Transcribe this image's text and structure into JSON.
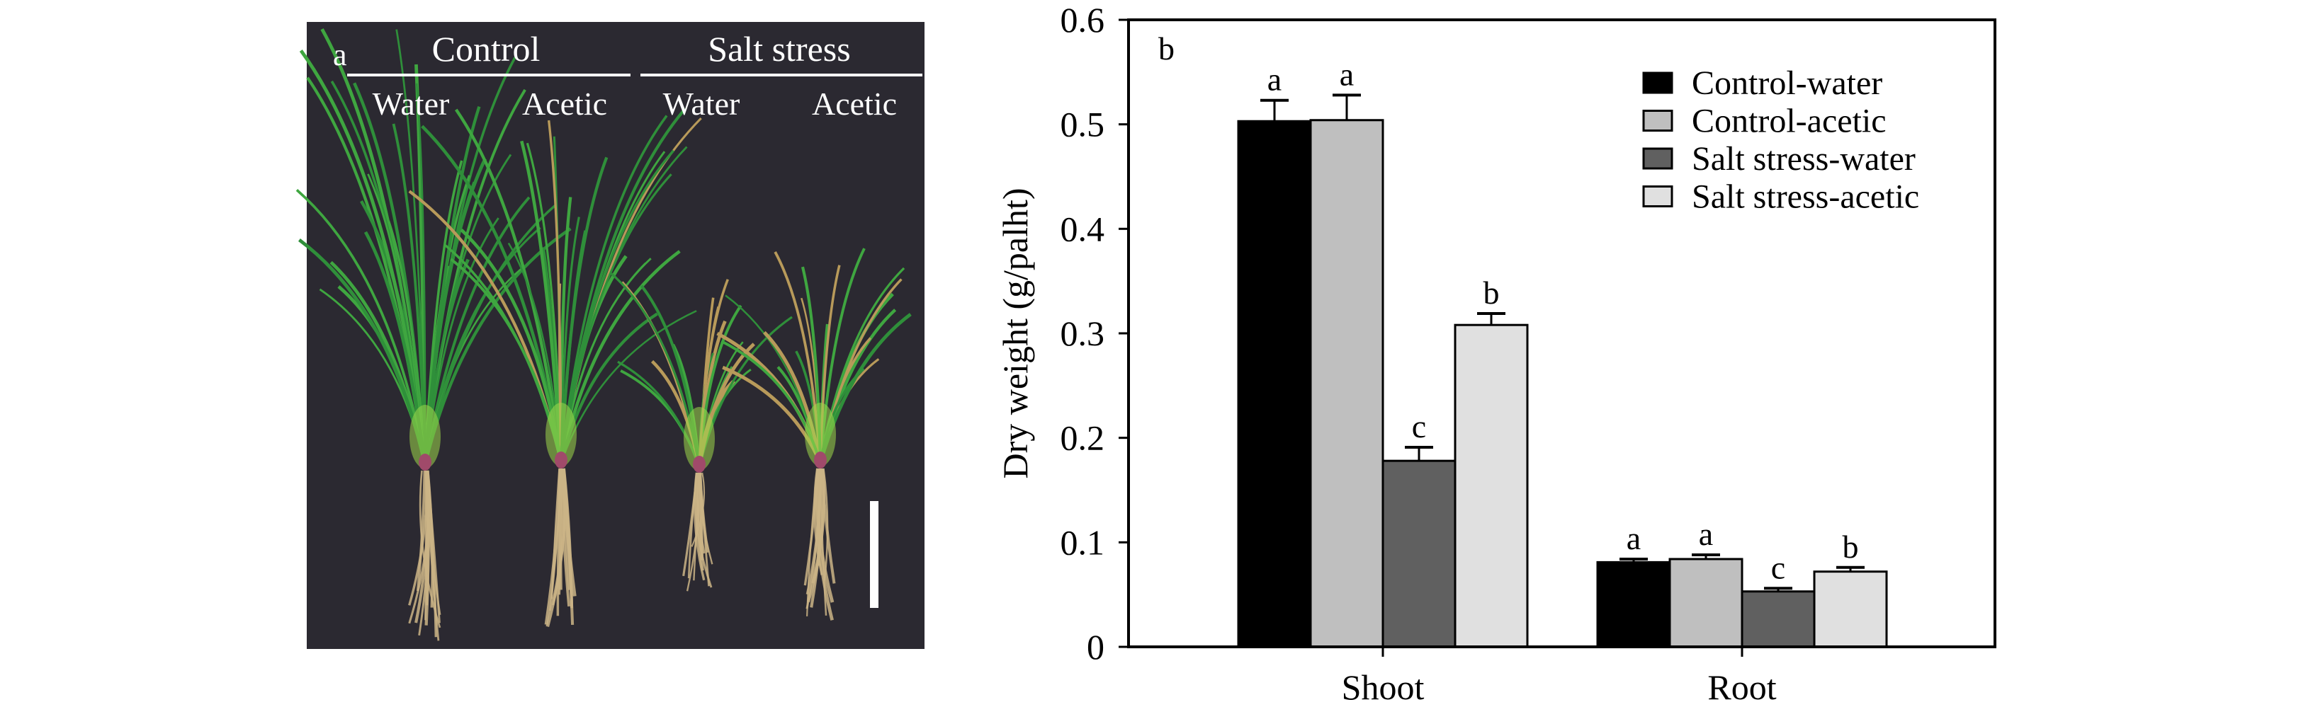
{
  "photo_panel": {
    "panel_label": "a",
    "group_labels": [
      "Control",
      "Salt stress"
    ],
    "treatment_labels": [
      "Water",
      "Acetic",
      "Water",
      "Acetic"
    ],
    "background_color": "#2b2931"
  },
  "chart_data": {
    "type": "bar",
    "panel_label": "b",
    "categories": [
      "Shoot",
      "Root"
    ],
    "ylabel": "Dry weight (g/palht)",
    "xlabel": "",
    "ylim": [
      0,
      0.6
    ],
    "yticks": [
      "0",
      "0.1",
      "0.2",
      "0.3",
      "0.4",
      "0.5",
      "0.6"
    ],
    "grid": false,
    "legend_position": "top-right",
    "error_bars": true,
    "series": [
      {
        "name": "Control-water",
        "color": "#000000",
        "values": [
          0.503,
          0.081
        ],
        "errors": [
          0.02,
          0.003
        ],
        "letters": [
          "a",
          "a"
        ]
      },
      {
        "name": "Control-acetic",
        "color": "#bfbfbf",
        "values": [
          0.504,
          0.084
        ],
        "errors": [
          0.024,
          0.004
        ],
        "letters": [
          "a",
          "a"
        ]
      },
      {
        "name": "Salt stress-water",
        "color": "#606060",
        "values": [
          0.178,
          0.053
        ],
        "errors": [
          0.013,
          0.003
        ],
        "letters": [
          "c",
          "c"
        ]
      },
      {
        "name": "Salt stress-acetic",
        "color": "#e0e0e0",
        "values": [
          0.308,
          0.072
        ],
        "errors": [
          0.011,
          0.004
        ],
        "letters": [
          "b",
          "b"
        ]
      }
    ]
  }
}
